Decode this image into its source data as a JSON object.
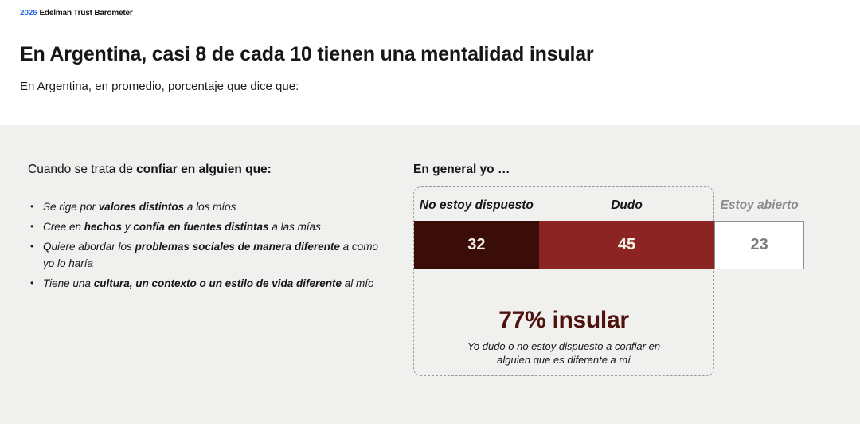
{
  "logo": {
    "year": "2026",
    "name": "Edelman Trust Barometer"
  },
  "header": {
    "title": "En Argentina, casi 8 de cada 10 tienen una mentalidad insular",
    "subtitle": "En Argentina, en promedio, porcentaje que dice que:"
  },
  "left_panel": {
    "heading_prefix": "Cuando se trata de ",
    "heading_bold": "confiar en alguien que:",
    "bullets": [
      [
        {
          "text": "Se rige por ",
          "bold": false
        },
        {
          "text": "valores distintos",
          "bold": true
        },
        {
          "text": " a los míos",
          "bold": false
        }
      ],
      [
        {
          "text": "Cree en ",
          "bold": false
        },
        {
          "text": "hechos",
          "bold": true
        },
        {
          "text": " y ",
          "bold": false
        },
        {
          "text": "confía en fuentes distintas",
          "bold": true
        },
        {
          "text": " a las mías",
          "bold": false
        }
      ],
      [
        {
          "text": "Quiere abordar los ",
          "bold": false
        },
        {
          "text": "problemas sociales de manera diferente",
          "bold": true
        },
        {
          "text": " a como yo lo haría",
          "bold": false
        }
      ],
      [
        {
          "text": "Tiene una ",
          "bold": false
        },
        {
          "text": "cultura, un contexto o un estilo de vida diferente",
          "bold": true
        },
        {
          "text": " al mío",
          "bold": false
        }
      ]
    ]
  },
  "chart": {
    "heading": "En general yo …",
    "highlight_label": "77% insular",
    "highlight_caption": "Yo dudo o no estoy dispuesto a confiar en alguien que es diferente a mí"
  },
  "chart_data": {
    "type": "bar",
    "subtype": "horizontal-stacked-percentage",
    "title": "En general yo …",
    "categories": [
      "No estoy dispuesto",
      "Dudo",
      "Estoy abierto"
    ],
    "values": [
      32,
      45,
      23
    ],
    "unit": "percent",
    "xlim": [
      0,
      100
    ],
    "segment_colors": [
      "#3A0D08",
      "#8C2423",
      "#FFFFFF"
    ],
    "segment_text_colors": [
      "#F6F0E6",
      "#F6F0E6",
      "#7D7D7D"
    ],
    "legend_position": "labels-above-segments",
    "grid": false,
    "highlight": {
      "value": 77,
      "label": "77% insular",
      "color": "#4F130E",
      "grouped_categories": [
        "No estoy dispuesto",
        "Dudo"
      ],
      "note": "dashed outline groups the two insular segments"
    }
  },
  "colors": {
    "brand_blue": "#2E6BE6",
    "band_background": "#F0F0EE",
    "dark_maroon": "#3A0D08",
    "mid_maroon": "#8C2423",
    "highlight_maroon": "#4F130E",
    "muted_gray_label": "#8C8C8C"
  }
}
